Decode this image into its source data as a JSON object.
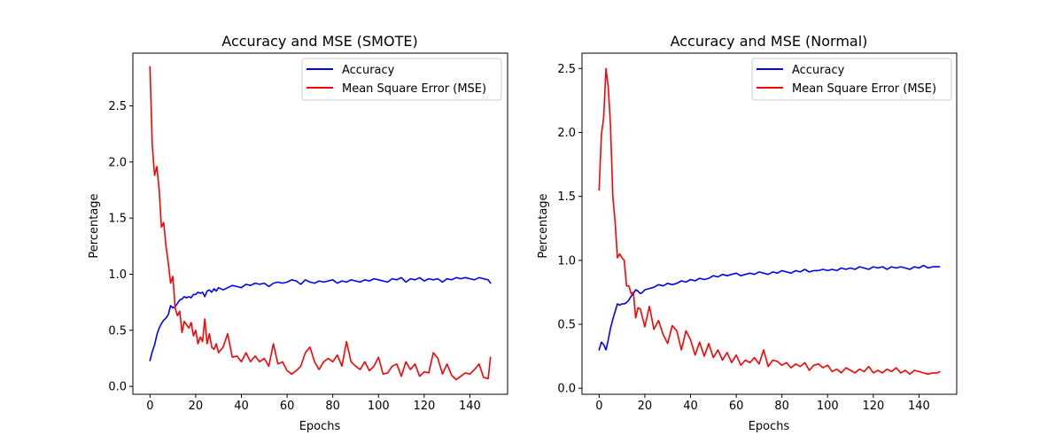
{
  "chart_data": [
    {
      "type": "line",
      "title": "Accuracy and MSE (SMOTE)",
      "xlabel": "Epochs",
      "ylabel": "Percentage",
      "xlim": [
        -7.5,
        156.5
      ],
      "ylim": [
        -0.07,
        2.97
      ],
      "xticks": [
        0,
        20,
        40,
        60,
        80,
        100,
        120,
        140
      ],
      "yticks": [
        0.0,
        0.5,
        1.0,
        1.5,
        2.0,
        2.5
      ],
      "xtick_labels": [
        "0",
        "20",
        "40",
        "60",
        "80",
        "100",
        "120",
        "140"
      ],
      "ytick_labels": [
        "0.0",
        "0.5",
        "1.0",
        "1.5",
        "2.0",
        "2.5"
      ],
      "legend_position": "top-right",
      "grid": false,
      "series": [
        {
          "name": "Accuracy",
          "color": "#0000ff",
          "x": [
            0,
            1,
            2,
            3,
            4,
            5,
            6,
            7,
            8,
            9,
            10,
            11,
            12,
            13,
            14,
            15,
            16,
            17,
            18,
            19,
            20,
            21,
            22,
            23,
            24,
            25,
            26,
            27,
            28,
            29,
            30,
            32,
            34,
            36,
            38,
            40,
            42,
            44,
            46,
            48,
            50,
            52,
            54,
            56,
            58,
            60,
            62,
            64,
            66,
            68,
            70,
            72,
            74,
            76,
            78,
            80,
            82,
            84,
            86,
            88,
            90,
            92,
            94,
            96,
            98,
            100,
            102,
            104,
            106,
            108,
            110,
            112,
            114,
            116,
            118,
            120,
            122,
            124,
            126,
            128,
            130,
            132,
            134,
            136,
            138,
            140,
            142,
            144,
            146,
            148,
            149
          ],
          "y": [
            0.23,
            0.31,
            0.37,
            0.46,
            0.52,
            0.56,
            0.59,
            0.61,
            0.64,
            0.72,
            0.7,
            0.71,
            0.74,
            0.77,
            0.78,
            0.8,
            0.79,
            0.8,
            0.79,
            0.82,
            0.82,
            0.84,
            0.83,
            0.84,
            0.8,
            0.85,
            0.86,
            0.84,
            0.87,
            0.85,
            0.88,
            0.86,
            0.88,
            0.9,
            0.89,
            0.88,
            0.91,
            0.9,
            0.92,
            0.91,
            0.92,
            0.89,
            0.92,
            0.93,
            0.92,
            0.93,
            0.95,
            0.94,
            0.91,
            0.95,
            0.93,
            0.92,
            0.94,
            0.93,
            0.94,
            0.95,
            0.92,
            0.94,
            0.93,
            0.95,
            0.94,
            0.93,
            0.95,
            0.94,
            0.96,
            0.95,
            0.94,
            0.93,
            0.96,
            0.95,
            0.97,
            0.93,
            0.96,
            0.95,
            0.97,
            0.94,
            0.96,
            0.95,
            0.96,
            0.93,
            0.96,
            0.95,
            0.97,
            0.96,
            0.97,
            0.96,
            0.95,
            0.97,
            0.96,
            0.95,
            0.92
          ]
        },
        {
          "name": "Mean Square Error (MSE)",
          "color": "#ff0000",
          "x": [
            0,
            1,
            2,
            3,
            4,
            5,
            6,
            7,
            8,
            9,
            10,
            11,
            12,
            13,
            14,
            15,
            16,
            17,
            18,
            19,
            20,
            21,
            22,
            23,
            24,
            25,
            26,
            27,
            28,
            29,
            30,
            32,
            34,
            36,
            38,
            40,
            42,
            44,
            46,
            48,
            50,
            52,
            54,
            56,
            58,
            60,
            62,
            64,
            66,
            68,
            70,
            72,
            74,
            76,
            78,
            80,
            82,
            84,
            86,
            88,
            90,
            92,
            94,
            96,
            98,
            100,
            102,
            104,
            106,
            108,
            110,
            112,
            114,
            116,
            118,
            120,
            122,
            124,
            126,
            128,
            130,
            132,
            134,
            136,
            138,
            140,
            142,
            144,
            146,
            148,
            149
          ],
          "y": [
            2.85,
            2.15,
            1.88,
            1.96,
            1.75,
            1.42,
            1.46,
            1.25,
            1.1,
            0.92,
            0.98,
            0.7,
            0.63,
            0.67,
            0.48,
            0.58,
            0.55,
            0.52,
            0.57,
            0.45,
            0.5,
            0.38,
            0.44,
            0.4,
            0.6,
            0.38,
            0.47,
            0.35,
            0.33,
            0.38,
            0.3,
            0.35,
            0.47,
            0.26,
            0.27,
            0.22,
            0.3,
            0.22,
            0.27,
            0.22,
            0.25,
            0.18,
            0.38,
            0.2,
            0.22,
            0.14,
            0.11,
            0.14,
            0.18,
            0.3,
            0.35,
            0.22,
            0.15,
            0.22,
            0.25,
            0.22,
            0.28,
            0.18,
            0.4,
            0.22,
            0.18,
            0.15,
            0.22,
            0.14,
            0.18,
            0.26,
            0.11,
            0.12,
            0.18,
            0.2,
            0.09,
            0.22,
            0.15,
            0.2,
            0.09,
            0.13,
            0.12,
            0.3,
            0.25,
            0.11,
            0.2,
            0.1,
            0.06,
            0.09,
            0.12,
            0.11,
            0.15,
            0.2,
            0.08,
            0.07,
            0.26
          ]
        }
      ]
    },
    {
      "type": "line",
      "title": "Accuracy and MSE (Normal)",
      "xlabel": "Epochs",
      "ylabel": "Percentage",
      "xlim": [
        -7.5,
        156.5
      ],
      "ylim": [
        -0.047,
        2.62
      ],
      "xticks": [
        0,
        20,
        40,
        60,
        80,
        100,
        120,
        140
      ],
      "yticks": [
        0.0,
        0.5,
        1.0,
        1.5,
        2.0,
        2.5
      ],
      "xtick_labels": [
        "0",
        "20",
        "40",
        "60",
        "80",
        "100",
        "120",
        "140"
      ],
      "ytick_labels": [
        "0.0",
        "0.5",
        "1.0",
        "1.5",
        "2.0",
        "2.5"
      ],
      "legend_position": "top-right",
      "grid": false,
      "series": [
        {
          "name": "Accuracy",
          "color": "#0000ff",
          "x": [
            0,
            1,
            2,
            3,
            4,
            5,
            6,
            7,
            8,
            9,
            10,
            11,
            12,
            13,
            14,
            15,
            16,
            17,
            18,
            19,
            20,
            22,
            24,
            26,
            28,
            30,
            32,
            34,
            36,
            38,
            40,
            42,
            44,
            46,
            48,
            50,
            52,
            54,
            56,
            58,
            60,
            62,
            64,
            66,
            68,
            70,
            72,
            74,
            76,
            78,
            80,
            82,
            84,
            86,
            88,
            90,
            92,
            94,
            96,
            98,
            100,
            102,
            104,
            106,
            108,
            110,
            112,
            114,
            116,
            118,
            120,
            122,
            124,
            126,
            128,
            130,
            132,
            134,
            136,
            138,
            140,
            142,
            144,
            146,
            148,
            149
          ],
          "y": [
            0.3,
            0.36,
            0.34,
            0.3,
            0.38,
            0.47,
            0.54,
            0.6,
            0.66,
            0.65,
            0.66,
            0.66,
            0.67,
            0.69,
            0.72,
            0.74,
            0.77,
            0.76,
            0.74,
            0.75,
            0.77,
            0.78,
            0.79,
            0.81,
            0.8,
            0.82,
            0.81,
            0.82,
            0.84,
            0.83,
            0.85,
            0.84,
            0.86,
            0.85,
            0.86,
            0.88,
            0.87,
            0.89,
            0.88,
            0.89,
            0.9,
            0.88,
            0.89,
            0.9,
            0.89,
            0.91,
            0.9,
            0.89,
            0.91,
            0.9,
            0.92,
            0.91,
            0.9,
            0.92,
            0.91,
            0.93,
            0.91,
            0.92,
            0.92,
            0.93,
            0.92,
            0.93,
            0.92,
            0.94,
            0.93,
            0.94,
            0.93,
            0.95,
            0.94,
            0.93,
            0.95,
            0.94,
            0.95,
            0.93,
            0.95,
            0.94,
            0.95,
            0.94,
            0.93,
            0.95,
            0.94,
            0.96,
            0.94,
            0.95,
            0.95,
            0.95
          ]
        },
        {
          "name": "Mean Square Error (MSE)",
          "color": "#ff0000",
          "x": [
            0,
            1,
            2,
            3,
            4,
            5,
            6,
            7,
            8,
            9,
            10,
            11,
            12,
            13,
            14,
            15,
            16,
            17,
            18,
            19,
            20,
            22,
            24,
            26,
            28,
            30,
            32,
            34,
            36,
            38,
            40,
            42,
            44,
            46,
            48,
            50,
            52,
            54,
            56,
            58,
            60,
            62,
            64,
            66,
            68,
            70,
            72,
            74,
            76,
            78,
            80,
            82,
            84,
            86,
            88,
            90,
            92,
            94,
            96,
            98,
            100,
            102,
            104,
            106,
            108,
            110,
            112,
            114,
            116,
            118,
            120,
            122,
            124,
            126,
            128,
            130,
            132,
            134,
            136,
            138,
            140,
            142,
            144,
            146,
            148,
            149
          ],
          "y": [
            1.55,
            1.98,
            2.12,
            2.5,
            2.35,
            2.05,
            1.5,
            1.3,
            1.02,
            1.05,
            1.02,
            1.0,
            0.8,
            0.8,
            0.74,
            0.75,
            0.55,
            0.63,
            0.62,
            0.55,
            0.48,
            0.64,
            0.46,
            0.53,
            0.42,
            0.35,
            0.49,
            0.45,
            0.3,
            0.45,
            0.38,
            0.26,
            0.36,
            0.25,
            0.35,
            0.24,
            0.3,
            0.22,
            0.28,
            0.2,
            0.26,
            0.18,
            0.22,
            0.2,
            0.24,
            0.19,
            0.3,
            0.17,
            0.22,
            0.21,
            0.18,
            0.2,
            0.16,
            0.19,
            0.17,
            0.2,
            0.14,
            0.18,
            0.19,
            0.16,
            0.18,
            0.13,
            0.15,
            0.12,
            0.16,
            0.14,
            0.12,
            0.15,
            0.13,
            0.17,
            0.12,
            0.14,
            0.12,
            0.15,
            0.13,
            0.16,
            0.12,
            0.14,
            0.11,
            0.14,
            0.13,
            0.12,
            0.11,
            0.12,
            0.12,
            0.13
          ]
        }
      ]
    }
  ]
}
